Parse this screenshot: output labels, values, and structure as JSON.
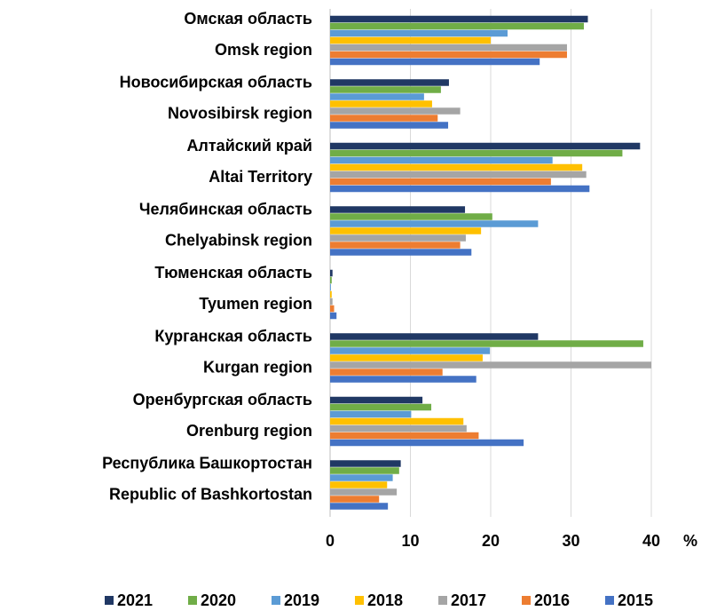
{
  "chart_data": {
    "type": "barh",
    "categories": [
      "Омская область",
      "Новосибирская область",
      "Алтайский край",
      "Челябинская область",
      "Тюменская область",
      "Курганская область",
      "Оренбургская область",
      "Республика Башкортостан"
    ],
    "categories_en": [
      "Omsk region",
      "Novosibirsk region",
      "Altai Territory",
      "Chelyabinsk region",
      "Tyumen region",
      "Kurgan region",
      "Orenburg region",
      "Republic of Bashkortostan"
    ],
    "series": [
      {
        "name": "2021",
        "color": "#203864",
        "values": [
          32.1,
          14.8,
          38.6,
          16.8,
          0.3,
          25.9,
          11.5,
          8.8
        ]
      },
      {
        "name": "2020",
        "color": "#70ad47",
        "values": [
          31.6,
          13.8,
          36.4,
          20.2,
          0.2,
          39,
          12.6,
          8.6
        ]
      },
      {
        "name": "2019",
        "color": "#5b9bd5",
        "values": [
          22.1,
          11.7,
          27.7,
          25.9,
          0.1,
          19.9,
          10.1,
          7.8
        ]
      },
      {
        "name": "2018",
        "color": "#ffc000",
        "values": [
          20,
          12.7,
          31.4,
          18.8,
          0.2,
          19,
          16.6,
          7.1
        ]
      },
      {
        "name": "2017",
        "color": "#a5a5a5",
        "values": [
          29.5,
          16.2,
          31.9,
          16.9,
          0.3,
          40,
          17,
          8.3
        ]
      },
      {
        "name": "2016",
        "color": "#ed7d31",
        "values": [
          29.5,
          13.4,
          27.5,
          16.2,
          0.5,
          14,
          18.5,
          6.1
        ]
      },
      {
        "name": "2015",
        "color": "#4472c4",
        "values": [
          26.1,
          14.7,
          32.3,
          17.6,
          0.8,
          18.2,
          24.1,
          7.2
        ]
      }
    ],
    "xlim": [
      0,
      40
    ],
    "xticks": [
      0,
      10,
      20,
      30,
      40
    ],
    "x_unit": "%",
    "grid": true,
    "legend": "bottom"
  }
}
